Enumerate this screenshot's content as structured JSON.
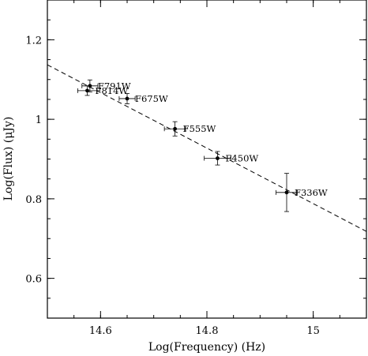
{
  "chart_data": {
    "type": "scatter",
    "title": "",
    "xlabel": "Log(Frequency) (Hz)",
    "ylabel": "Log(Flux) (μJy)",
    "xlim": [
      14.5,
      15.1
    ],
    "ylim": [
      0.5,
      1.3
    ],
    "x_ticks": [
      {
        "value": 14.6,
        "label": "14.6"
      },
      {
        "value": 14.8,
        "label": "14.8"
      },
      {
        "value": 15.0,
        "label": "15"
      }
    ],
    "y_ticks": [
      {
        "value": 0.6,
        "label": "0.6"
      },
      {
        "value": 0.8,
        "label": "0.8"
      },
      {
        "value": 1.0,
        "label": "1"
      },
      {
        "value": 1.2,
        "label": "1.2"
      }
    ],
    "grid": false,
    "points": [
      {
        "label": "F791W",
        "x": 14.58,
        "y": 1.084,
        "xerr": 0.015,
        "yerr": 0.015
      },
      {
        "label": "F814W",
        "x": 14.575,
        "y": 1.072,
        "xerr": 0.018,
        "yerr": 0.012
      },
      {
        "label": "F675W",
        "x": 14.65,
        "y": 1.052,
        "xerr": 0.015,
        "yerr": 0.013
      },
      {
        "label": "F555W",
        "x": 14.74,
        "y": 0.976,
        "xerr": 0.02,
        "yerr": 0.018
      },
      {
        "label": "F450W",
        "x": 14.82,
        "y": 0.902,
        "xerr": 0.025,
        "yerr": 0.017
      },
      {
        "label": "F336W",
        "x": 14.95,
        "y": 0.816,
        "xerr": 0.02,
        "yerr": 0.048
      }
    ],
    "fit_line": {
      "style": "dashed",
      "x": [
        14.5,
        15.1
      ],
      "y": [
        1.137,
        0.718
      ]
    }
  }
}
